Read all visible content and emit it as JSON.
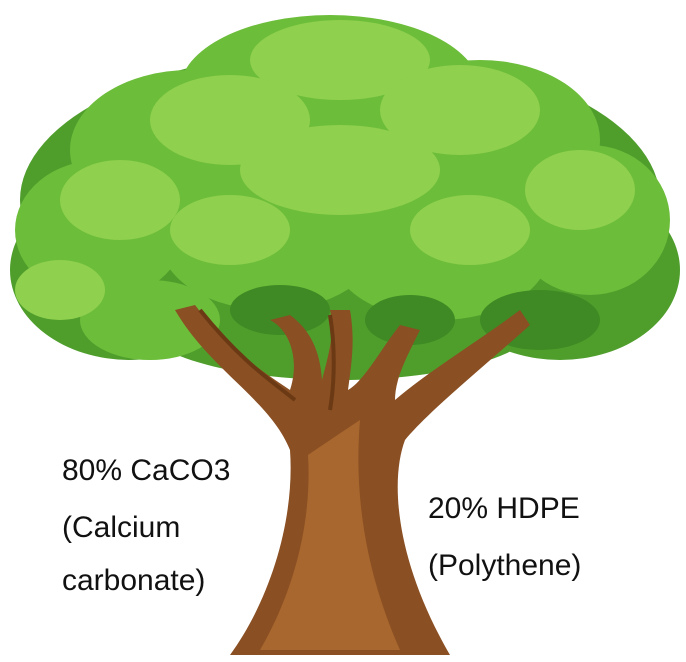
{
  "labels": {
    "left": [
      "80% CaCO3",
      "(Calcium",
      "carbonate)"
    ],
    "right": [
      "20% HDPE",
      "(Polythene)"
    ]
  }
}
